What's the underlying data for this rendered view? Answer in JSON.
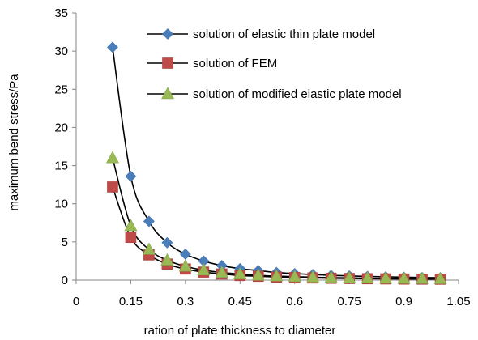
{
  "chart_data": {
    "type": "line",
    "xlabel": "ration of plate thickness to diameter",
    "ylabel": "maximum bend stress/Pa",
    "xlim": [
      0,
      1.05
    ],
    "ylim": [
      0,
      35
    ],
    "x_ticks": [
      "0",
      "0.15",
      "0.3",
      "0.45",
      "0.6",
      "0.75",
      "0.9",
      "1.05"
    ],
    "x_tick_values": [
      0,
      0.15,
      0.3,
      0.45,
      0.6,
      0.75,
      0.9,
      1.05
    ],
    "y_ticks": [
      "0",
      "5",
      "10",
      "15",
      "20",
      "25",
      "30",
      "35"
    ],
    "y_tick_values": [
      0,
      5,
      10,
      15,
      20,
      25,
      30,
      35
    ],
    "grid": false,
    "legend_position": "top-right",
    "x": [
      0.1,
      0.15,
      0.2,
      0.25,
      0.3,
      0.35,
      0.4,
      0.45,
      0.5,
      0.55,
      0.6,
      0.65,
      0.7,
      0.75,
      0.8,
      0.85,
      0.9,
      0.95,
      1.0
    ],
    "series": [
      {
        "name": "solution of elastic thin plate model",
        "marker": "diamond",
        "color": "#4a7ebb",
        "values": [
          30.5,
          13.6,
          7.7,
          4.9,
          3.4,
          2.5,
          1.9,
          1.5,
          1.25,
          1.0,
          0.85,
          0.73,
          0.62,
          0.55,
          0.48,
          0.43,
          0.38,
          0.34,
          0.31
        ]
      },
      {
        "name": "solution of FEM",
        "marker": "square",
        "color": "#be4b48",
        "values": [
          12.2,
          5.6,
          3.3,
          2.1,
          1.45,
          1.05,
          0.8,
          0.6,
          0.5,
          0.4,
          0.33,
          0.28,
          0.24,
          0.21,
          0.18,
          0.16,
          0.14,
          0.13,
          0.12
        ]
      },
      {
        "name": "solution of modified elastic plate model",
        "marker": "triangle",
        "color": "#98b954",
        "values": [
          16.0,
          7.1,
          4.0,
          2.6,
          1.8,
          1.3,
          1.0,
          0.78,
          0.62,
          0.52,
          0.44,
          0.38,
          0.32,
          0.28,
          0.25,
          0.22,
          0.2,
          0.18,
          0.16
        ]
      }
    ]
  }
}
